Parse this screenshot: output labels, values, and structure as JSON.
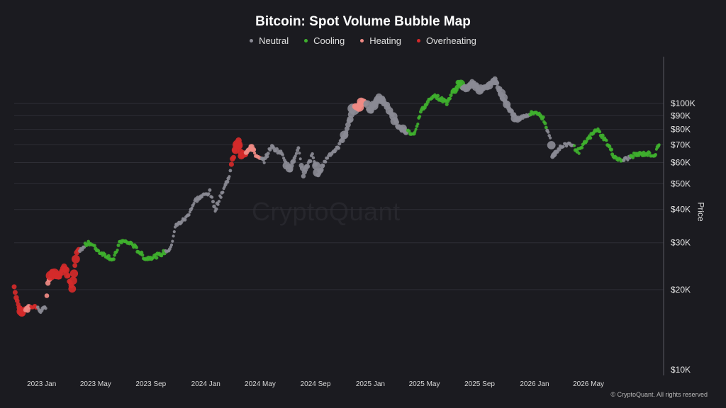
{
  "chart_data": {
    "type": "scatter",
    "title": "Bitcoin: Spot Volume Bubble Map",
    "ylabel": "Price",
    "y_scale": "log",
    "ylim": [
      10000,
      150000
    ],
    "x_range": [
      "2022-11-01",
      "2026-10-15"
    ],
    "x_ticks": [
      {
        "date": "2023-01-01",
        "label": "2023 Jan"
      },
      {
        "date": "2023-05-01",
        "label": "2023 May"
      },
      {
        "date": "2023-09-01",
        "label": "2023 Sep"
      },
      {
        "date": "2024-01-01",
        "label": "2024 Jan"
      },
      {
        "date": "2024-05-01",
        "label": "2024 May"
      },
      {
        "date": "2024-09-01",
        "label": "2024 Sep"
      },
      {
        "date": "2025-01-01",
        "label": "2025 Jan"
      },
      {
        "date": "2025-05-01",
        "label": "2025 May"
      },
      {
        "date": "2025-09-01",
        "label": "2025 Sep"
      },
      {
        "date": "2026-01-01",
        "label": "2026 Jan"
      },
      {
        "date": "2026-05-01",
        "label": "2026 May"
      }
    ],
    "y_ticks": [
      {
        "value": 10000,
        "label": "$10K"
      },
      {
        "value": 20000,
        "label": "$20K"
      },
      {
        "value": 30000,
        "label": "$30K"
      },
      {
        "value": 40000,
        "label": "$40K"
      },
      {
        "value": 50000,
        "label": "$50K"
      },
      {
        "value": 60000,
        "label": "$60K"
      },
      {
        "value": 70000,
        "label": "$70K"
      },
      {
        "value": 80000,
        "label": "$80K"
      },
      {
        "value": 90000,
        "label": "$90K"
      },
      {
        "value": 100000,
        "label": "$100K"
      }
    ],
    "grid": "horizontal",
    "legend_position": "top-center",
    "series": [
      {
        "name": "Neutral",
        "color": "#8a8a94"
      },
      {
        "name": "Cooling",
        "color": "#3fb02e"
      },
      {
        "name": "Heating",
        "color": "#f08a84"
      },
      {
        "name": "Overheating",
        "color": "#d42a2a"
      }
    ],
    "path": [
      {
        "date": "2022-11-01",
        "price": 20500,
        "state": "Overheating",
        "size": 2
      },
      {
        "date": "2022-11-10",
        "price": 17500,
        "state": "Overheating",
        "size": 2
      },
      {
        "date": "2022-11-20",
        "price": 16400,
        "state": "Overheating",
        "size": 2
      },
      {
        "date": "2022-12-01",
        "price": 17000,
        "state": "Heating",
        "size": 2
      },
      {
        "date": "2022-12-15",
        "price": 17400,
        "state": "Overheating",
        "size": 1
      },
      {
        "date": "2023-01-01",
        "price": 16550,
        "state": "Neutral",
        "size": 1
      },
      {
        "date": "2023-01-10",
        "price": 17300,
        "state": "Neutral",
        "size": 1
      },
      {
        "date": "2023-01-15",
        "price": 21000,
        "state": "Heating",
        "size": 2
      },
      {
        "date": "2023-01-25",
        "price": 23000,
        "state": "Overheating",
        "size": 3
      },
      {
        "date": "2023-02-10",
        "price": 22500,
        "state": "Overheating",
        "size": 2
      },
      {
        "date": "2023-02-20",
        "price": 24500,
        "state": "Overheating",
        "size": 3
      },
      {
        "date": "2023-03-10",
        "price": 20200,
        "state": "Overheating",
        "size": 2
      },
      {
        "date": "2023-03-20",
        "price": 27500,
        "state": "Overheating",
        "size": 2
      },
      {
        "date": "2023-04-01",
        "price": 28400,
        "state": "Neutral",
        "size": 1
      },
      {
        "date": "2023-04-15",
        "price": 30300,
        "state": "Cooling",
        "size": 1
      },
      {
        "date": "2023-05-10",
        "price": 27700,
        "state": "Cooling",
        "size": 1
      },
      {
        "date": "2023-06-10",
        "price": 25900,
        "state": "Cooling",
        "size": 1
      },
      {
        "date": "2023-06-25",
        "price": 30500,
        "state": "Cooling",
        "size": 1
      },
      {
        "date": "2023-07-20",
        "price": 29800,
        "state": "Cooling",
        "size": 1
      },
      {
        "date": "2023-08-20",
        "price": 26100,
        "state": "Cooling",
        "size": 1
      },
      {
        "date": "2023-09-20",
        "price": 27000,
        "state": "Cooling",
        "size": 1
      },
      {
        "date": "2023-10-15",
        "price": 28500,
        "state": "Neutral",
        "size": 1
      },
      {
        "date": "2023-10-25",
        "price": 34500,
        "state": "Neutral",
        "size": 1
      },
      {
        "date": "2023-11-20",
        "price": 37500,
        "state": "Neutral",
        "size": 1
      },
      {
        "date": "2023-12-10",
        "price": 43500,
        "state": "Neutral",
        "size": 1
      },
      {
        "date": "2024-01-10",
        "price": 46500,
        "state": "Neutral",
        "size": 1
      },
      {
        "date": "2024-01-22",
        "price": 40000,
        "state": "Neutral",
        "size": 1
      },
      {
        "date": "2024-02-10",
        "price": 48000,
        "state": "Neutral",
        "size": 1
      },
      {
        "date": "2024-02-20",
        "price": 52000,
        "state": "Neutral",
        "size": 1
      },
      {
        "date": "2024-03-05",
        "price": 66000,
        "state": "Overheating",
        "size": 2
      },
      {
        "date": "2024-03-14",
        "price": 72000,
        "state": "Overheating",
        "size": 3
      },
      {
        "date": "2024-03-20",
        "price": 63000,
        "state": "Overheating",
        "size": 3
      },
      {
        "date": "2024-04-10",
        "price": 69000,
        "state": "Heating",
        "size": 2
      },
      {
        "date": "2024-04-25",
        "price": 62500,
        "state": "Heating",
        "size": 1
      },
      {
        "date": "2024-05-10",
        "price": 61000,
        "state": "Neutral",
        "size": 1
      },
      {
        "date": "2024-05-25",
        "price": 69000,
        "state": "Neutral",
        "size": 1
      },
      {
        "date": "2024-06-20",
        "price": 64500,
        "state": "Neutral",
        "size": 1
      },
      {
        "date": "2024-07-05",
        "price": 56000,
        "state": "Neutral",
        "size": 2
      },
      {
        "date": "2024-07-25",
        "price": 67000,
        "state": "Neutral",
        "size": 1
      },
      {
        "date": "2024-08-05",
        "price": 54000,
        "state": "Neutral",
        "size": 2
      },
      {
        "date": "2024-08-25",
        "price": 64000,
        "state": "Neutral",
        "size": 1
      },
      {
        "date": "2024-09-07",
        "price": 54500,
        "state": "Neutral",
        "size": 2
      },
      {
        "date": "2024-09-30",
        "price": 64000,
        "state": "Neutral",
        "size": 1
      },
      {
        "date": "2024-10-20",
        "price": 68000,
        "state": "Neutral",
        "size": 1
      },
      {
        "date": "2024-11-10",
        "price": 80000,
        "state": "Neutral",
        "size": 2
      },
      {
        "date": "2024-11-22",
        "price": 95000,
        "state": "Neutral",
        "size": 3
      },
      {
        "date": "2024-12-05",
        "price": 98000,
        "state": "Heating",
        "size": 3
      },
      {
        "date": "2024-12-18",
        "price": 102000,
        "state": "Heating",
        "size": 2
      },
      {
        "date": "2025-01-01",
        "price": 94000,
        "state": "Neutral",
        "size": 2
      },
      {
        "date": "2025-01-20",
        "price": 105000,
        "state": "Neutral",
        "size": 3
      },
      {
        "date": "2025-02-10",
        "price": 97000,
        "state": "Neutral",
        "size": 2
      },
      {
        "date": "2025-02-28",
        "price": 84000,
        "state": "Neutral",
        "size": 2
      },
      {
        "date": "2025-03-10",
        "price": 80000,
        "state": "Neutral",
        "size": 2
      },
      {
        "date": "2025-04-08",
        "price": 77000,
        "state": "Cooling",
        "size": 1
      },
      {
        "date": "2025-04-25",
        "price": 94000,
        "state": "Cooling",
        "size": 1
      },
      {
        "date": "2025-05-20",
        "price": 108000,
        "state": "Cooling",
        "size": 1
      },
      {
        "date": "2025-06-20",
        "price": 101000,
        "state": "Cooling",
        "size": 1
      },
      {
        "date": "2025-07-15",
        "price": 118000,
        "state": "Cooling",
        "size": 2
      },
      {
        "date": "2025-08-05",
        "price": 114000,
        "state": "Neutral",
        "size": 2
      },
      {
        "date": "2025-08-15",
        "price": 121000,
        "state": "Neutral",
        "size": 2
      },
      {
        "date": "2025-09-05",
        "price": 111000,
        "state": "Neutral",
        "size": 2
      },
      {
        "date": "2025-10-05",
        "price": 123000,
        "state": "Neutral",
        "size": 2
      },
      {
        "date": "2025-10-20",
        "price": 108000,
        "state": "Neutral",
        "size": 2
      },
      {
        "date": "2025-11-20",
        "price": 87000,
        "state": "Neutral",
        "size": 2
      },
      {
        "date": "2025-12-10",
        "price": 90000,
        "state": "Neutral",
        "size": 1
      },
      {
        "date": "2026-01-05",
        "price": 93000,
        "state": "Cooling",
        "size": 1
      },
      {
        "date": "2026-01-20",
        "price": 88000,
        "state": "Cooling",
        "size": 1
      },
      {
        "date": "2026-02-05",
        "price": 75000,
        "state": "Neutral",
        "size": 1
      },
      {
        "date": "2026-02-10",
        "price": 63000,
        "state": "Neutral",
        "size": 2
      },
      {
        "date": "2026-02-25",
        "price": 68000,
        "state": "Neutral",
        "size": 1
      },
      {
        "date": "2026-03-20",
        "price": 71000,
        "state": "Neutral",
        "size": 1
      },
      {
        "date": "2026-04-10",
        "price": 66000,
        "state": "Cooling",
        "size": 1
      },
      {
        "date": "2026-05-01",
        "price": 74000,
        "state": "Cooling",
        "size": 1
      },
      {
        "date": "2026-05-20",
        "price": 80000,
        "state": "Cooling",
        "size": 1
      },
      {
        "date": "2026-06-10",
        "price": 72000,
        "state": "Cooling",
        "size": 1
      },
      {
        "date": "2026-06-25",
        "price": 64000,
        "state": "Cooling",
        "size": 1
      },
      {
        "date": "2026-07-10",
        "price": 61000,
        "state": "Cooling",
        "size": 1
      },
      {
        "date": "2026-07-25",
        "price": 62000,
        "state": "Neutral",
        "size": 1
      },
      {
        "date": "2026-08-10",
        "price": 64000,
        "state": "Cooling",
        "size": 1
      },
      {
        "date": "2026-09-05",
        "price": 65000,
        "state": "Cooling",
        "size": 1
      },
      {
        "date": "2026-09-25",
        "price": 64000,
        "state": "Cooling",
        "size": 1
      },
      {
        "date": "2026-10-05",
        "price": 70000,
        "state": "Cooling",
        "size": 1
      }
    ]
  },
  "watermark": "CryptoQuant",
  "copyright": "© CryptoQuant. All rights reserved"
}
